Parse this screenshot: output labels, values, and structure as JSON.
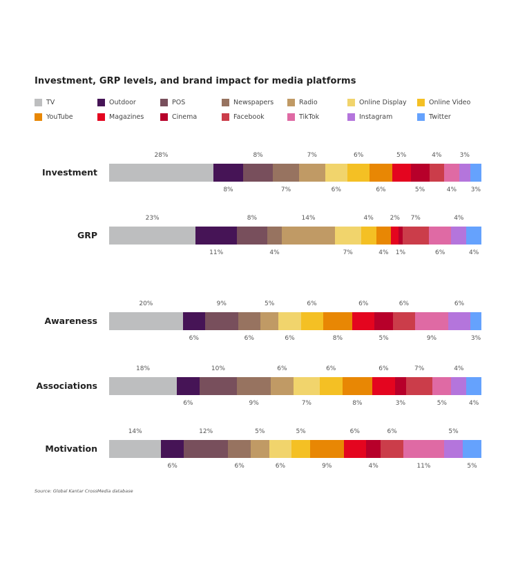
{
  "chart_data": {
    "type": "bar",
    "stacked": true,
    "orientation": "horizontal",
    "title": "Investment, GRP levels, and brand impact for media platforms",
    "legend_position": "top-left",
    "grid": false,
    "unit": "%",
    "categories": [
      "Investment",
      "GRP",
      "Awareness",
      "Associations",
      "Motivation"
    ],
    "series": [
      {
        "name": "TV",
        "color": "#bdbebf",
        "values": [
          28,
          23,
          20,
          18,
          14
        ]
      },
      {
        "name": "Outdoor",
        "color": "#461456",
        "values": [
          8,
          11,
          6,
          6,
          6
        ]
      },
      {
        "name": "POS",
        "color": "#784f5c",
        "values": [
          8,
          8,
          9,
          10,
          12
        ]
      },
      {
        "name": "Newspapers",
        "color": "#977360",
        "values": [
          7,
          4,
          6,
          9,
          6
        ]
      },
      {
        "name": "Radio",
        "color": "#c09a65",
        "values": [
          7,
          14,
          5,
          6,
          5
        ]
      },
      {
        "name": "Online Display",
        "color": "#f1d46c",
        "values": [
          6,
          7,
          6,
          7,
          6
        ]
      },
      {
        "name": "Online Video",
        "color": "#f4c024",
        "values": [
          6,
          4,
          6,
          6,
          5
        ]
      },
      {
        "name": "YouTube",
        "color": "#e88704",
        "values": [
          6,
          4,
          8,
          8,
          9
        ]
      },
      {
        "name": "Magazines",
        "color": "#e4051f",
        "values": [
          5,
          2,
          6,
          6,
          6
        ]
      },
      {
        "name": "Cinema",
        "color": "#b7002a",
        "values": [
          5,
          1,
          5,
          3,
          4
        ]
      },
      {
        "name": "Facebook",
        "color": "#cb3d4a",
        "values": [
          4,
          7,
          6,
          7,
          6
        ]
      },
      {
        "name": "TikTok",
        "color": "#df6aa4",
        "values": [
          4,
          6,
          9,
          5,
          11
        ]
      },
      {
        "name": "Instagram",
        "color": "#b475dc",
        "values": [
          3,
          4,
          6,
          4,
          5
        ]
      },
      {
        "name": "Twitter",
        "color": "#65a2fd",
        "values": [
          3,
          4,
          3,
          4,
          5
        ]
      }
    ]
  },
  "source": "Source: Global Kantar CrossMedia database"
}
